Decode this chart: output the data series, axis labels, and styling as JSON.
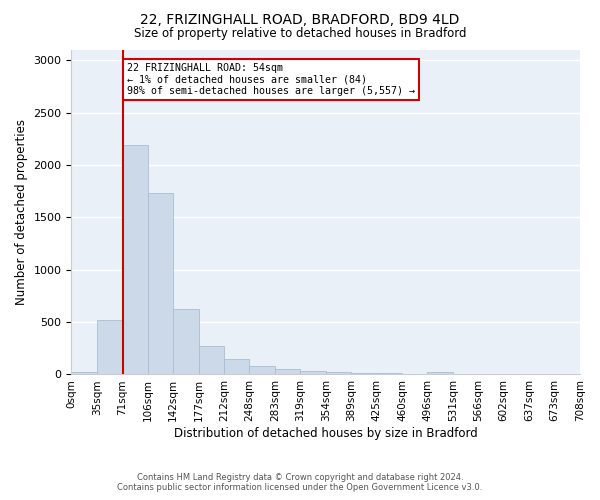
{
  "title_line1": "22, FRIZINGHALL ROAD, BRADFORD, BD9 4LD",
  "title_line2": "Size of property relative to detached houses in Bradford",
  "xlabel": "Distribution of detached houses by size in Bradford",
  "ylabel": "Number of detached properties",
  "bar_color": "#ccd9e8",
  "bar_edge_color": "#aabdd4",
  "background_color": "#eaf0f8",
  "grid_color": "#ffffff",
  "bin_labels": [
    "0sqm",
    "35sqm",
    "71sqm",
    "106sqm",
    "142sqm",
    "177sqm",
    "212sqm",
    "248sqm",
    "283sqm",
    "319sqm",
    "354sqm",
    "389sqm",
    "425sqm",
    "460sqm",
    "496sqm",
    "531sqm",
    "566sqm",
    "602sqm",
    "637sqm",
    "673sqm",
    "708sqm"
  ],
  "n_bins": 20,
  "bar_values": [
    25,
    525,
    2190,
    1730,
    630,
    270,
    145,
    80,
    50,
    35,
    20,
    15,
    10,
    5,
    25,
    5,
    5,
    3,
    3,
    2
  ],
  "ylim": [
    0,
    3100
  ],
  "yticks": [
    0,
    500,
    1000,
    1500,
    2000,
    2500,
    3000
  ],
  "property_line_x": 1.54,
  "annotation_text": "22 FRIZINGHALL ROAD: 54sqm\n← 1% of detached houses are smaller (84)\n98% of semi-detached houses are larger (5,557) →",
  "annotation_box_color": "#ffffff",
  "annotation_border_color": "#cc0000",
  "vline_color": "#cc0000",
  "footer_line1": "Contains HM Land Registry data © Crown copyright and database right 2024.",
  "footer_line2": "Contains public sector information licensed under the Open Government Licence v3.0."
}
